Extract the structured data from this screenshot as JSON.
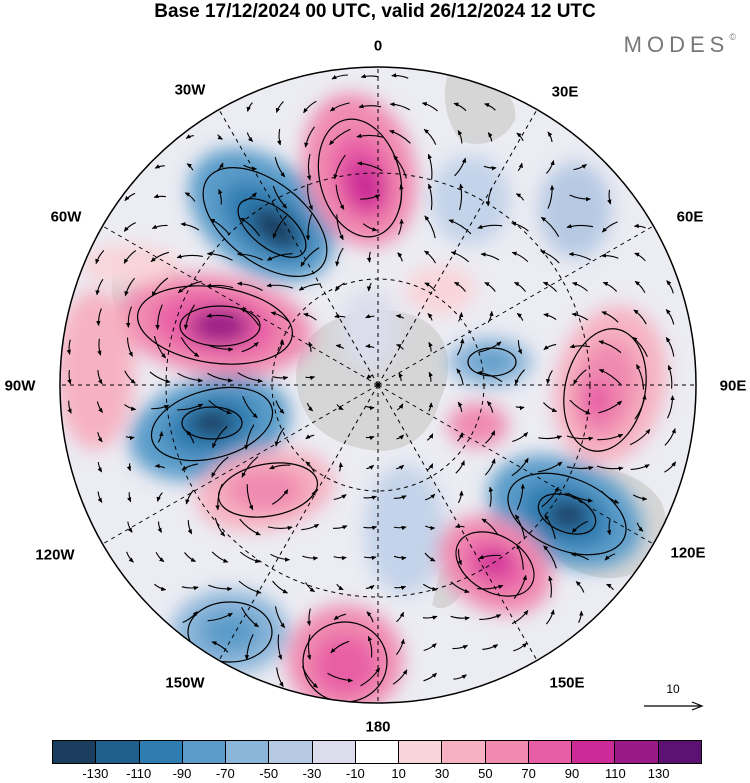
{
  "header": {
    "title": "Base 17/12/2024 00 UTC, valid 26/12/2024 12 UTC",
    "brand": "MODES",
    "brand_mark": "©"
  },
  "map": {
    "projection": "south-polar-stereographic",
    "longitude_labels": {
      "lon_0": "0",
      "lon_30e": "30E",
      "lon_60e": "60E",
      "lon_90e": "90E",
      "lon_120e": "120E",
      "lon_150e": "150E",
      "lon_180": "180",
      "lon_150w": "150W",
      "lon_120w": "120W",
      "lon_90w": "90W",
      "lon_60w": "60W",
      "lon_30w": "30W"
    },
    "reference_vector": {
      "label": "10"
    }
  },
  "colorbar": {
    "colors": [
      "#1b3d5e",
      "#1f5f8b",
      "#2f7cb0",
      "#5a9bc9",
      "#8bb5d9",
      "#b6c9e3",
      "#dcdcec",
      "#ffffff",
      "#f9d4d9",
      "#f6b2c2",
      "#f08ab0",
      "#e85ea6",
      "#cc2a96",
      "#991a86",
      "#5b1273"
    ],
    "ticks": [
      "-130",
      "-110",
      "-90",
      "-70",
      "-50",
      "-30",
      "-10",
      "10",
      "30",
      "50",
      "70",
      "90",
      "110",
      "130"
    ]
  }
}
